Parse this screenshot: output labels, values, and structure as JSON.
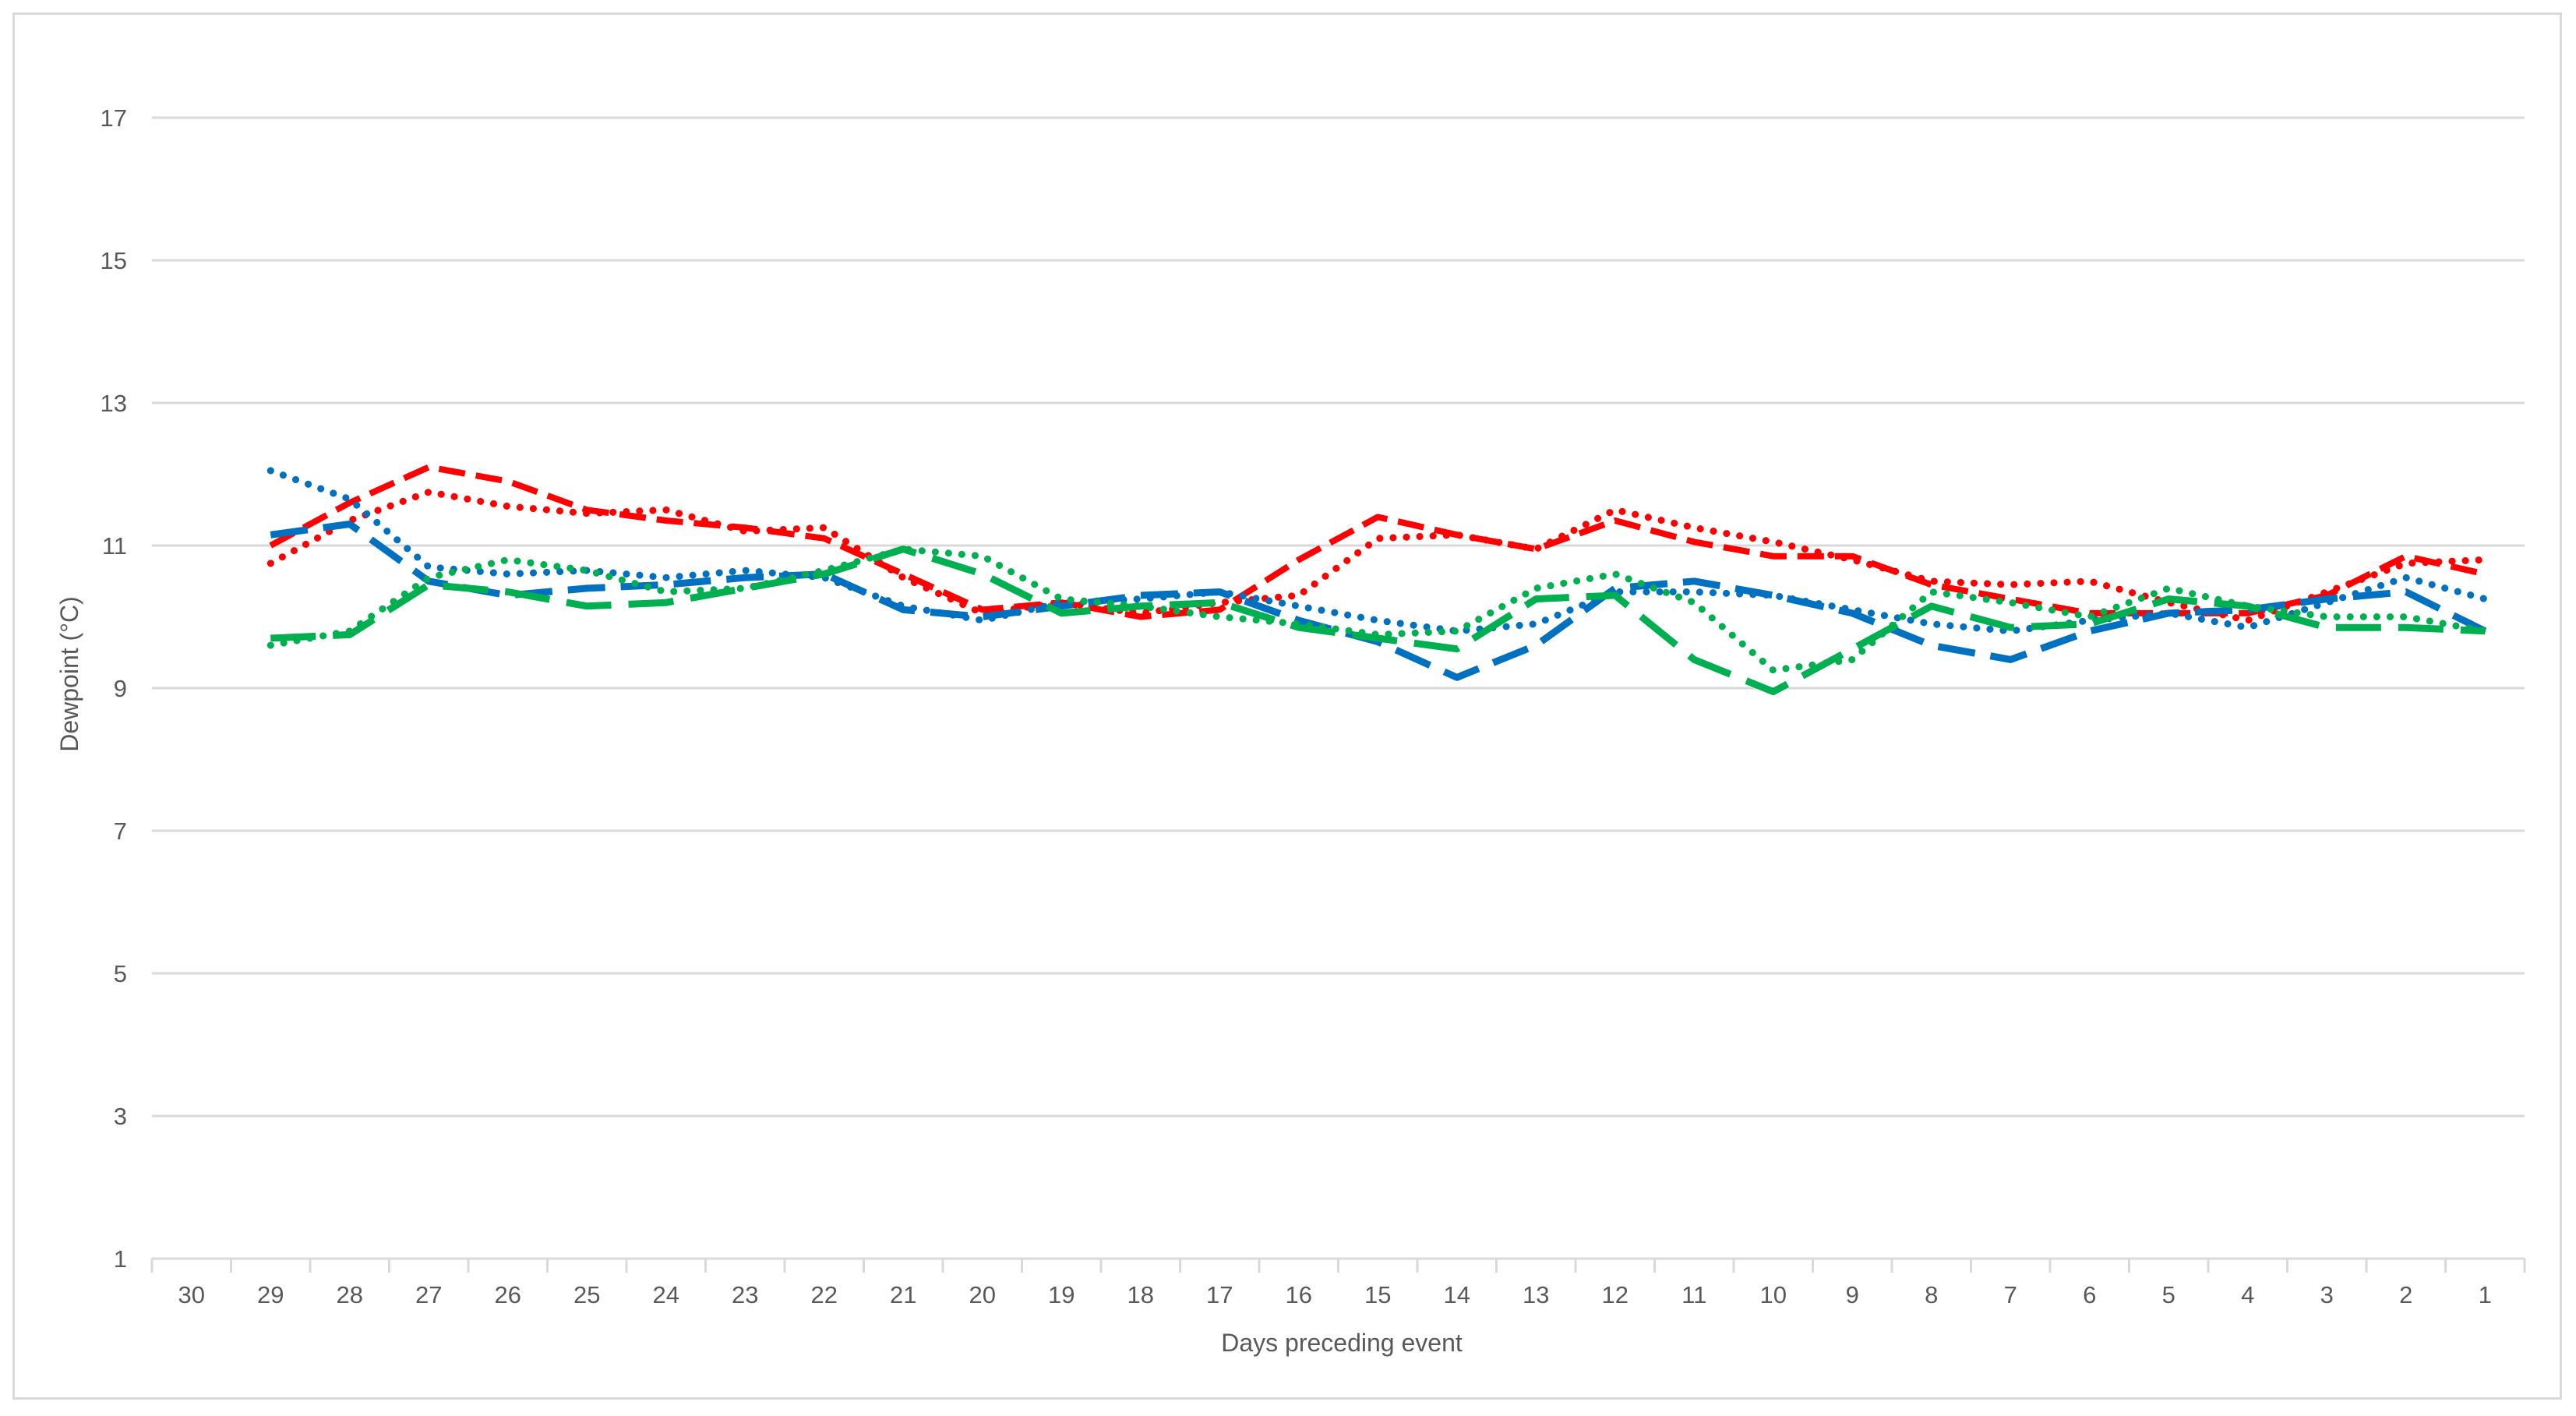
{
  "chart_data": {
    "type": "line",
    "title": "",
    "xlabel": "Days preceding event",
    "ylabel": "Dewpoint (°C)",
    "ylim": [
      1,
      18
    ],
    "yticks": [
      1,
      3,
      5,
      7,
      9,
      11,
      13,
      15,
      17
    ],
    "grid": "horizontal",
    "legend": "none",
    "categories": [
      "30",
      "29",
      "28",
      "27",
      "26",
      "25",
      "24",
      "23",
      "22",
      "21",
      "20",
      "19",
      "18",
      "17",
      "16",
      "15",
      "14",
      "13",
      "12",
      "11",
      "10",
      "9",
      "8",
      "7",
      "6",
      "5",
      "4",
      "3",
      "2",
      "1"
    ],
    "series": [
      {
        "name": "red-dashed",
        "color": "#ff0000",
        "style": "dashed",
        "values": [
          null,
          11.0,
          11.6,
          12.1,
          11.9,
          11.5,
          11.35,
          11.25,
          11.1,
          10.6,
          10.1,
          10.2,
          10.0,
          10.1,
          10.8,
          11.4,
          11.15,
          10.95,
          11.35,
          11.05,
          10.85,
          10.85,
          10.45,
          10.25,
          10.05,
          10.05,
          10.05,
          10.3,
          10.85,
          10.6
        ]
      },
      {
        "name": "red-dotted",
        "color": "#ff0000",
        "style": "dotted",
        "values": [
          null,
          10.75,
          11.35,
          11.75,
          11.55,
          11.45,
          11.5,
          11.2,
          11.25,
          10.55,
          10.05,
          10.2,
          10.05,
          10.2,
          10.3,
          11.1,
          11.15,
          10.95,
          11.5,
          11.25,
          11.05,
          10.8,
          10.5,
          10.45,
          10.5,
          10.2,
          9.95,
          10.35,
          10.75,
          10.8
        ]
      },
      {
        "name": "blue-dashed",
        "color": "#0070c0",
        "style": "dashed",
        "values": [
          null,
          11.15,
          11.3,
          10.5,
          10.3,
          10.4,
          10.45,
          10.55,
          10.6,
          10.1,
          10.0,
          10.15,
          10.3,
          10.35,
          9.95,
          9.65,
          9.15,
          9.6,
          10.4,
          10.5,
          10.3,
          10.05,
          9.6,
          9.4,
          9.8,
          10.05,
          10.1,
          10.25,
          10.35,
          9.8
        ]
      },
      {
        "name": "blue-dotted",
        "color": "#0070c0",
        "style": "dotted",
        "values": [
          null,
          12.05,
          11.65,
          10.7,
          10.6,
          10.65,
          10.55,
          10.65,
          10.55,
          10.15,
          9.95,
          10.2,
          10.25,
          10.35,
          10.15,
          9.95,
          9.8,
          9.9,
          10.35,
          10.35,
          10.3,
          10.1,
          9.9,
          9.8,
          9.95,
          10.05,
          9.85,
          10.2,
          10.55,
          10.25
        ]
      },
      {
        "name": "green-dashed",
        "color": "#00b050",
        "style": "dashed",
        "values": [
          null,
          9.7,
          9.75,
          10.45,
          10.35,
          10.15,
          10.2,
          10.4,
          10.6,
          10.95,
          10.6,
          10.05,
          10.15,
          10.2,
          9.85,
          9.7,
          9.55,
          10.25,
          10.3,
          9.4,
          8.95,
          9.55,
          10.15,
          9.85,
          9.9,
          10.25,
          10.15,
          9.85,
          9.85,
          9.8
        ]
      },
      {
        "name": "green-dotted",
        "color": "#00b050",
        "style": "dotted",
        "values": [
          null,
          9.6,
          9.8,
          10.55,
          10.8,
          10.65,
          10.35,
          10.4,
          10.65,
          10.95,
          10.85,
          10.25,
          10.15,
          10.0,
          9.9,
          9.75,
          9.8,
          10.4,
          10.6,
          10.2,
          9.25,
          9.4,
          10.35,
          10.2,
          10.0,
          10.4,
          10.15,
          10.0,
          10.0,
          9.8
        ]
      }
    ]
  }
}
